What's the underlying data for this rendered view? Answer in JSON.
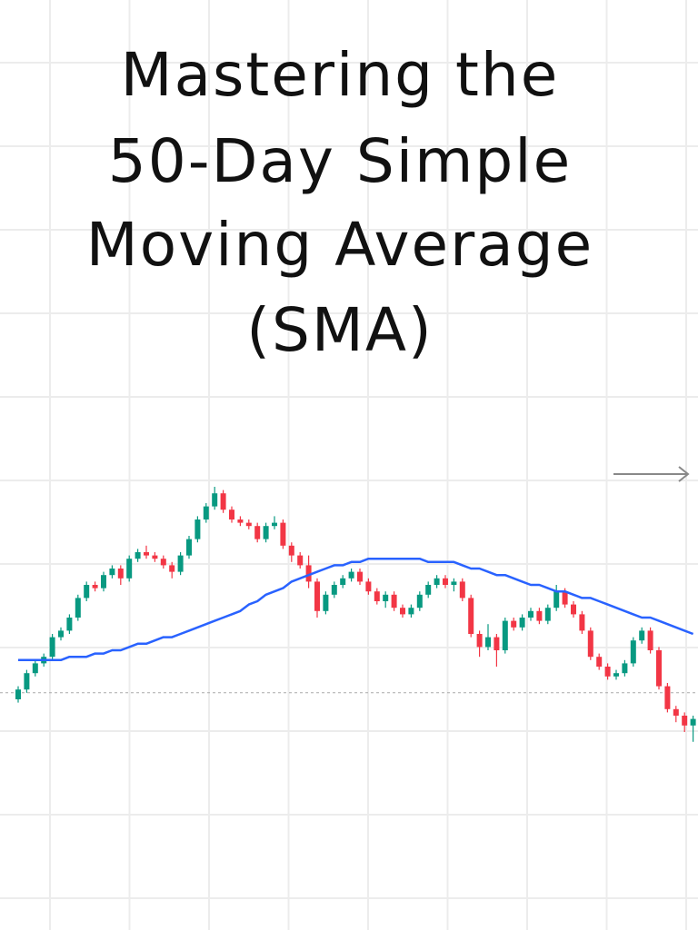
{
  "chart_data": {
    "type": "candlestick",
    "title": [
      "Mastering the",
      "50-Day Simple",
      "Moving Average",
      "(SMA)"
    ],
    "ylim": [
      0,
      100
    ],
    "up_color": "#089981",
    "down_color": "#f23645",
    "open": [
      25,
      28,
      33,
      36,
      38,
      44,
      46,
      50,
      56,
      60,
      59,
      63,
      65,
      62,
      68,
      70,
      69,
      68,
      66,
      64,
      69,
      74,
      80,
      84,
      88,
      83,
      80,
      79,
      78,
      74,
      78,
      79,
      72,
      69,
      66,
      61,
      52,
      57,
      60,
      62,
      64,
      61,
      58,
      55,
      57,
      53,
      51,
      53,
      57,
      60,
      62,
      60,
      61,
      56,
      45,
      41,
      44,
      40,
      49,
      47,
      50,
      52,
      49,
      53,
      58,
      54,
      51,
      46,
      38,
      35,
      32,
      33,
      36,
      43,
      46,
      40,
      29,
      22,
      20,
      17
    ],
    "high": [
      29,
      34,
      37,
      39,
      45,
      47,
      51,
      57,
      61,
      61,
      64,
      66,
      66,
      69,
      71,
      72,
      70,
      69,
      67,
      70,
      75,
      81,
      85,
      90,
      89,
      84,
      81,
      80,
      79,
      79,
      81,
      80,
      73,
      70,
      69,
      62,
      58,
      61,
      63,
      65,
      65,
      62,
      59,
      58,
      58,
      54,
      54,
      58,
      61,
      63,
      63,
      62,
      62,
      57,
      46,
      48,
      45,
      50,
      50,
      51,
      53,
      53,
      54,
      60,
      59,
      55,
      52,
      47,
      39,
      36,
      34,
      37,
      44,
      47,
      47,
      41,
      30,
      23,
      21,
      20
    ],
    "low": [
      24,
      27,
      32,
      35,
      37,
      43,
      45,
      49,
      55,
      58,
      58,
      62,
      60,
      61,
      67,
      68,
      67,
      65,
      62,
      63,
      68,
      73,
      79,
      83,
      82,
      79,
      78,
      77,
      73,
      73,
      77,
      71,
      67,
      65,
      59,
      50,
      51,
      56,
      59,
      61,
      60,
      57,
      54,
      53,
      52,
      50,
      50,
      52,
      56,
      59,
      59,
      58,
      55,
      44,
      38,
      40,
      35,
      39,
      46,
      46,
      49,
      48,
      48,
      52,
      53,
      50,
      45,
      37,
      34,
      31,
      31,
      32,
      35,
      42,
      39,
      28,
      21,
      18,
      15,
      12
    ],
    "close": [
      28,
      33,
      36,
      38,
      44,
      46,
      50,
      56,
      60,
      59,
      63,
      65,
      62,
      68,
      70,
      69,
      68,
      66,
      64,
      69,
      74,
      80,
      84,
      88,
      83,
      80,
      79,
      78,
      74,
      78,
      79,
      72,
      69,
      66,
      61,
      52,
      57,
      60,
      62,
      64,
      61,
      58,
      55,
      57,
      53,
      51,
      53,
      57,
      60,
      62,
      60,
      61,
      56,
      45,
      41,
      44,
      40,
      49,
      47,
      50,
      52,
      49,
      53,
      58,
      54,
      51,
      46,
      38,
      35,
      32,
      33,
      36,
      43,
      46,
      40,
      29,
      22,
      20,
      17,
      19
    ],
    "sma": {
      "color": "#2962ff",
      "values": [
        37,
        37,
        37,
        37,
        37,
        37,
        38,
        38,
        38,
        39,
        39,
        40,
        40,
        41,
        42,
        42,
        43,
        44,
        44,
        45,
        46,
        47,
        48,
        49,
        50,
        51,
        52,
        54,
        55,
        57,
        58,
        59,
        61,
        62,
        63,
        64,
        65,
        66,
        66,
        67,
        67,
        68,
        68,
        68,
        68,
        68,
        68,
        68,
        67,
        67,
        67,
        67,
        66,
        65,
        65,
        64,
        63,
        63,
        62,
        61,
        60,
        60,
        59,
        58,
        58,
        57,
        56,
        56,
        55,
        54,
        53,
        52,
        51,
        50,
        50,
        49,
        48,
        47,
        46,
        45
      ]
    },
    "reference_line": 27
  }
}
